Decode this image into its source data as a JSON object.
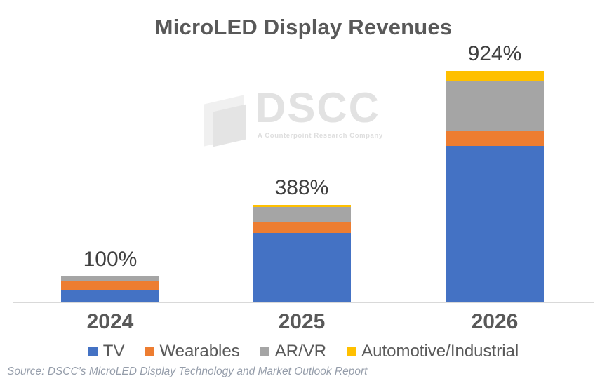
{
  "title": "MicroLED Display Revenues",
  "watermark": {
    "brand": "DSCC",
    "tagline": "A Counterpoint Research Company"
  },
  "source": "Source: DSCC’s MicroLED Display Technology and Market Outlook Report",
  "chart_data": {
    "type": "bar",
    "stacked": true,
    "title": "MicroLED Display Revenues",
    "categories": [
      "2024",
      "2025",
      "2026"
    ],
    "bar_total_labels": [
      "100%",
      "388%",
      "924%"
    ],
    "bar_totals": [
      100,
      388,
      924
    ],
    "series": [
      {
        "name": "TV",
        "color": "#4472C4",
        "values": [
          47,
          276,
          624
        ]
      },
      {
        "name": "Wearables",
        "color": "#ED7D31",
        "values": [
          34,
          45,
          58
        ]
      },
      {
        "name": "AR/VR",
        "color": "#A5A5A5",
        "values": [
          19,
          58,
          200
        ]
      },
      {
        "name": "Automotive/Industrial",
        "color": "#FFC000",
        "values": [
          0,
          9,
          42
        ]
      }
    ],
    "value_format": "percent (indexed, 2024 total = 100%)",
    "xlabel": "",
    "ylabel": "",
    "ylim": [
      0,
      950
    ],
    "grid": false,
    "legend_position": "bottom",
    "axis_line_color": "#d9d9d9",
    "label_color": "#404040"
  }
}
